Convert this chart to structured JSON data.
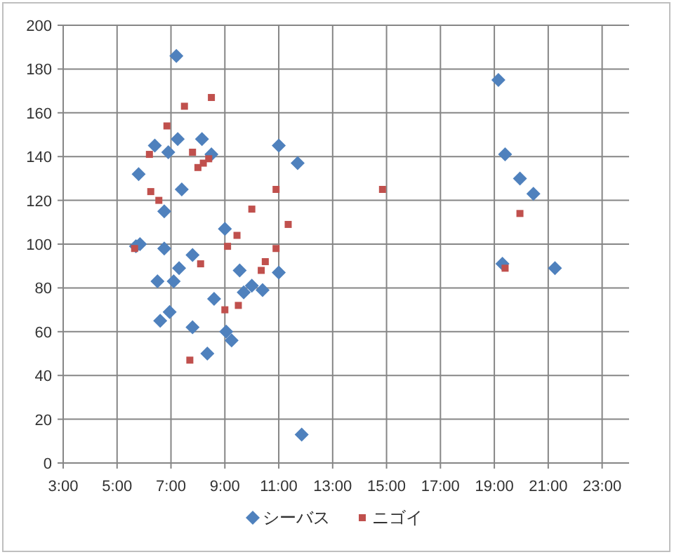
{
  "chart_data": {
    "type": "scatter",
    "xlim": [
      3,
      24
    ],
    "ylim": [
      0,
      200
    ],
    "xticks": [
      {
        "value": 3,
        "label": "3:00"
      },
      {
        "value": 5,
        "label": "5:00"
      },
      {
        "value": 7,
        "label": "7:00"
      },
      {
        "value": 9,
        "label": "9:00"
      },
      {
        "value": 11,
        "label": "11:00"
      },
      {
        "value": 13,
        "label": "13:00"
      },
      {
        "value": 15,
        "label": "15:00"
      },
      {
        "value": 17,
        "label": "17:00"
      },
      {
        "value": 19,
        "label": "19:00"
      },
      {
        "value": 21,
        "label": "21:00"
      },
      {
        "value": 23,
        "label": "23:00"
      }
    ],
    "yticks": [
      0,
      20,
      40,
      60,
      80,
      100,
      120,
      140,
      160,
      180,
      200
    ],
    "grid": true,
    "legend": "bottom",
    "series": [
      {
        "name": "シーバス",
        "color": "#4f81bd",
        "marker": "diamond",
        "x": [
          7.2,
          6.4,
          7.25,
          8.15,
          6.9,
          8.5,
          5.8,
          7.4,
          6.75,
          9.0,
          11.0,
          5.85,
          5.7,
          6.75,
          7.8,
          7.3,
          6.5,
          7.1,
          9.55,
          11.0,
          10.0,
          9.7,
          10.4,
          8.6,
          6.6,
          6.95,
          7.8,
          9.05,
          9.25,
          8.35,
          11.7,
          11.85,
          19.4,
          19.95,
          20.45,
          19.3,
          21.25,
          19.15
        ],
        "values": [
          186,
          145,
          148,
          148,
          142,
          141,
          132,
          125,
          115,
          107,
          145,
          100,
          99,
          98,
          95,
          89,
          83,
          83,
          88,
          87,
          81,
          78,
          79,
          75,
          65,
          69,
          62,
          60,
          56,
          50,
          137,
          13,
          141,
          130,
          123,
          91,
          89,
          175
        ]
      },
      {
        "name": "ニゴイ",
        "color": "#c0504d",
        "marker": "square",
        "x": [
          8.5,
          7.5,
          6.85,
          6.2,
          7.8,
          8.4,
          8.2,
          8.0,
          6.25,
          6.55,
          10.9,
          10.0,
          11.35,
          9.45,
          9.1,
          10.9,
          5.65,
          8.1,
          10.35,
          10.5,
          9.0,
          9.5,
          7.7,
          14.85,
          19.95,
          19.4
        ],
        "values": [
          167,
          163,
          154,
          141,
          142,
          139,
          137,
          135,
          124,
          120,
          125,
          116,
          109,
          104,
          99,
          98,
          98,
          91,
          88,
          92,
          70,
          72,
          47,
          125,
          114,
          89
        ]
      }
    ]
  }
}
